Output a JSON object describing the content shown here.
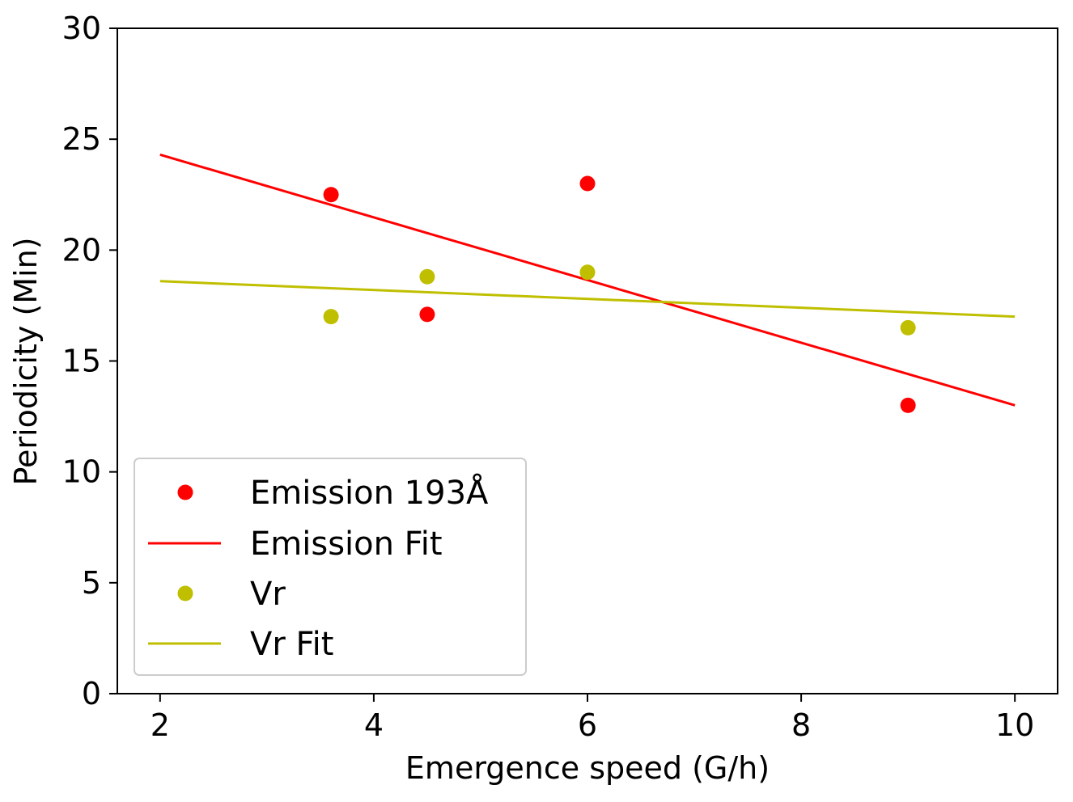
{
  "chart_data": {
    "type": "scatter",
    "title": "",
    "xlabel": "Emergence speed (G/h)",
    "ylabel": "Periodicity (Min)",
    "xlim": [
      1.6,
      10.4
    ],
    "ylim": [
      0,
      30
    ],
    "xticks": [
      2,
      4,
      6,
      8,
      10
    ],
    "yticks": [
      0,
      5,
      10,
      15,
      20,
      25,
      30
    ],
    "grid": false,
    "legend_position": "lower-left",
    "series": [
      {
        "name": "Emission 193Å",
        "kind": "scatter",
        "color": "#ff0000",
        "x": [
          3.6,
          4.5,
          6.0,
          9.0
        ],
        "y": [
          22.5,
          17.1,
          23.0,
          13.0
        ]
      },
      {
        "name": "Emission Fit",
        "kind": "line",
        "color": "#ff0000",
        "x": [
          2,
          10
        ],
        "y": [
          24.3,
          13.0
        ]
      },
      {
        "name": "Vr",
        "kind": "scatter",
        "color": "#bfbf00",
        "x": [
          3.6,
          4.5,
          6.0,
          9.0
        ],
        "y": [
          17.0,
          18.8,
          19.0,
          16.5
        ]
      },
      {
        "name": "Vr Fit",
        "kind": "line",
        "color": "#bfbf00",
        "x": [
          2,
          10
        ],
        "y": [
          18.6,
          17.0
        ]
      }
    ]
  }
}
